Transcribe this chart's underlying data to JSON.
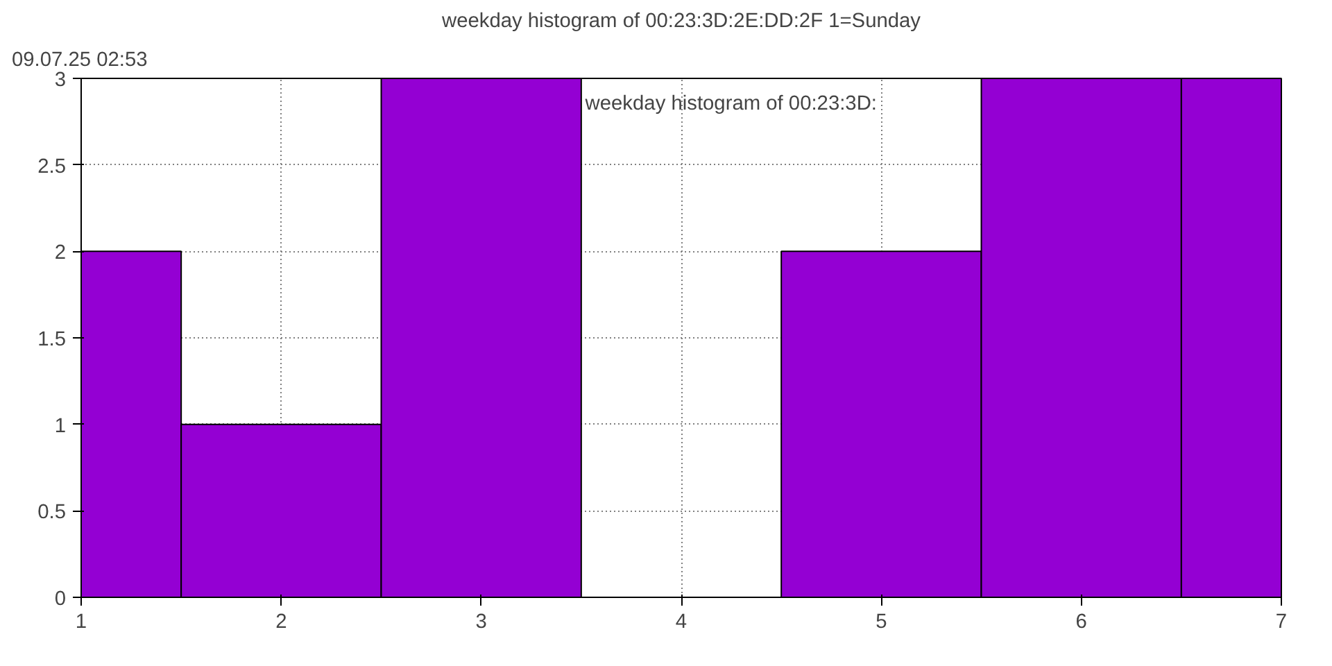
{
  "chart_data": {
    "type": "histogram",
    "title": "weekday histogram of 00:23:3D:2E:DD:2F 1=Sunday",
    "annotations": [
      "09.07.25 02:53"
    ],
    "bins": [
      1,
      1.5,
      2.5,
      3.5,
      4.5,
      5.5,
      6.5,
      7
    ],
    "series": [
      {
        "name": "weekday histogram of 00:23:3D:",
        "color": "#9400d3",
        "values": [
          2,
          1,
          3,
          0,
          2,
          3,
          3
        ]
      }
    ],
    "xlim": [
      1,
      7
    ],
    "xticks": [
      1,
      2,
      3,
      4,
      5,
      6,
      7
    ],
    "ylim": [
      0,
      3
    ],
    "yticks": [
      0,
      {
        "value": 0.5,
        "label": "0.5"
      },
      1,
      {
        "value": 1.5,
        "label": "1.5"
      },
      2,
      {
        "value": 2.5,
        "label": "2.5"
      },
      3
    ],
    "grid": true
  }
}
